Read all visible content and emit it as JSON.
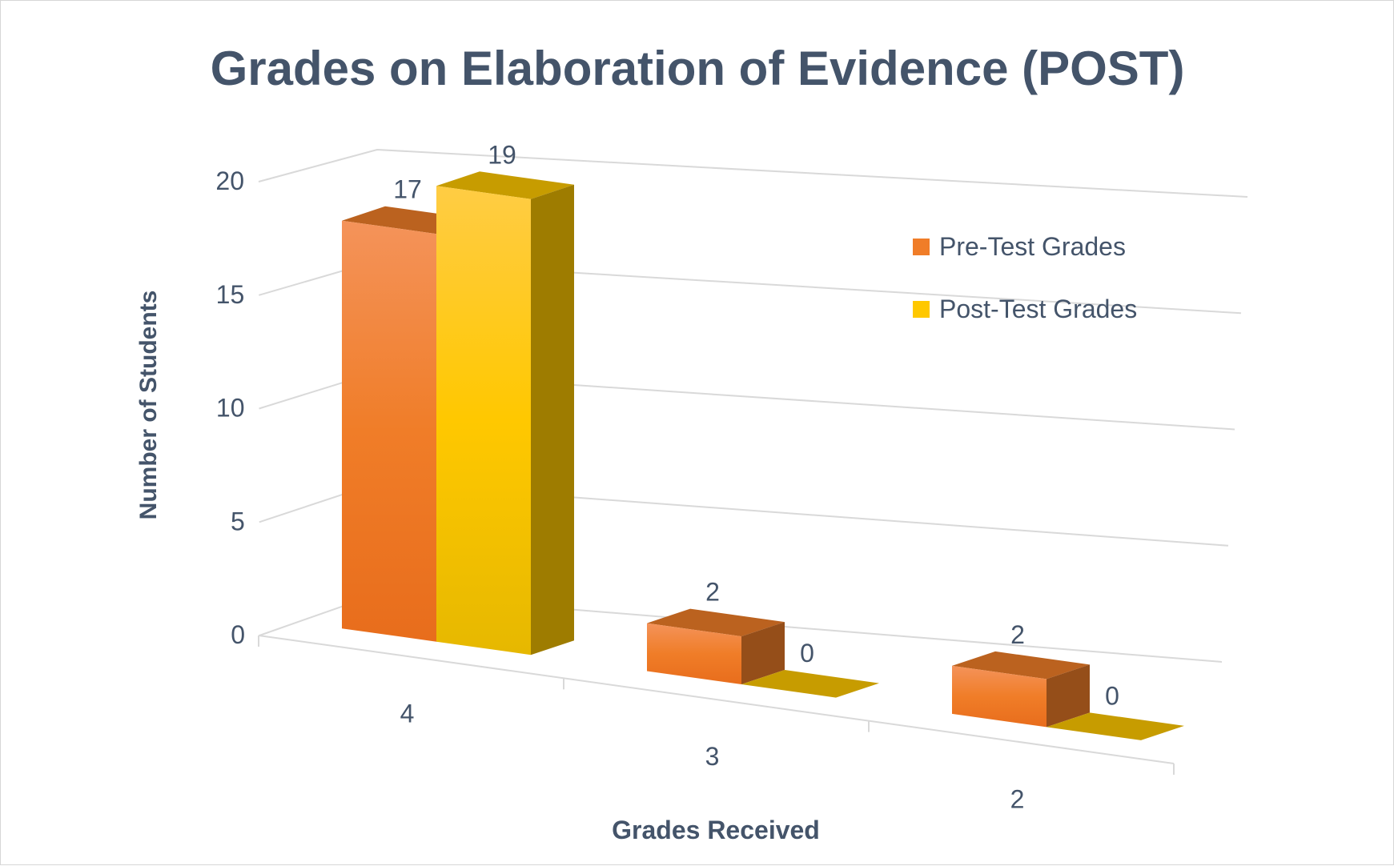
{
  "chart_data": {
    "type": "bar",
    "title": "Grades on Elaboration of Evidence (POST)",
    "xlabel": "Grades Received",
    "ylabel": "Number of Students",
    "categories": [
      "4",
      "3",
      "2"
    ],
    "series": [
      {
        "name": "Pre-Test Grades",
        "values": [
          17,
          2,
          2
        ],
        "color": "#f07d28"
      },
      {
        "name": "Post-Test Grades",
        "values": [
          19,
          0,
          0
        ],
        "color": "#ffc800"
      }
    ],
    "ylim": [
      0,
      20
    ],
    "yticks": [
      "0",
      "5",
      "10",
      "15",
      "20"
    ],
    "grid": true,
    "legend": "right",
    "colors": {
      "title": "#44546a",
      "axis_text": "#44546a",
      "gridline": "#d9d9d9"
    }
  }
}
